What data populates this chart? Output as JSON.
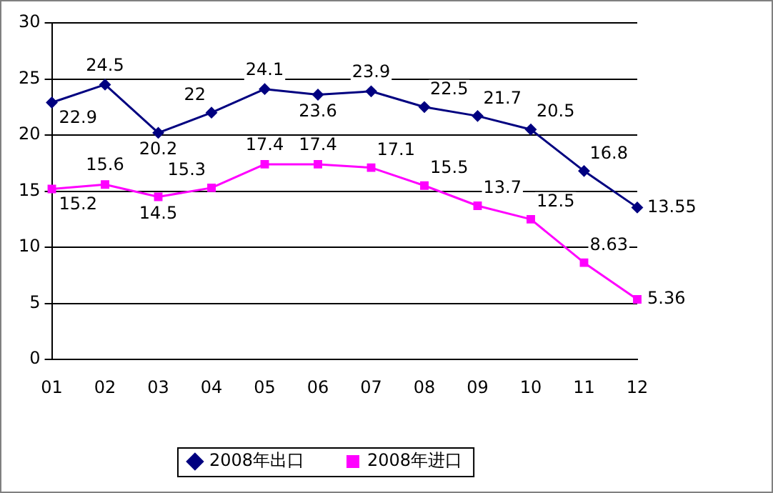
{
  "chart_data": {
    "type": "line",
    "categories": [
      "01",
      "02",
      "03",
      "04",
      "05",
      "06",
      "07",
      "08",
      "09",
      "10",
      "11",
      "12"
    ],
    "series": [
      {
        "name": "2008年出口",
        "color": "#000080",
        "marker": "diamond",
        "values": [
          22.9,
          24.5,
          20.2,
          22,
          24.1,
          23.6,
          23.9,
          22.5,
          21.7,
          20.5,
          16.8,
          13.55
        ]
      },
      {
        "name": "2008年进口",
        "color": "#ff00ff",
        "marker": "square",
        "values": [
          15.2,
          15.6,
          14.5,
          15.3,
          17.4,
          17.4,
          17.1,
          15.5,
          13.7,
          12.5,
          8.63,
          5.36
        ]
      }
    ],
    "ylim": [
      0,
      30
    ],
    "yticks": [
      0,
      5,
      10,
      15,
      20,
      25,
      30
    ],
    "grid": "y",
    "legend": "bottom",
    "data_labels": true,
    "line_style": "solid"
  }
}
